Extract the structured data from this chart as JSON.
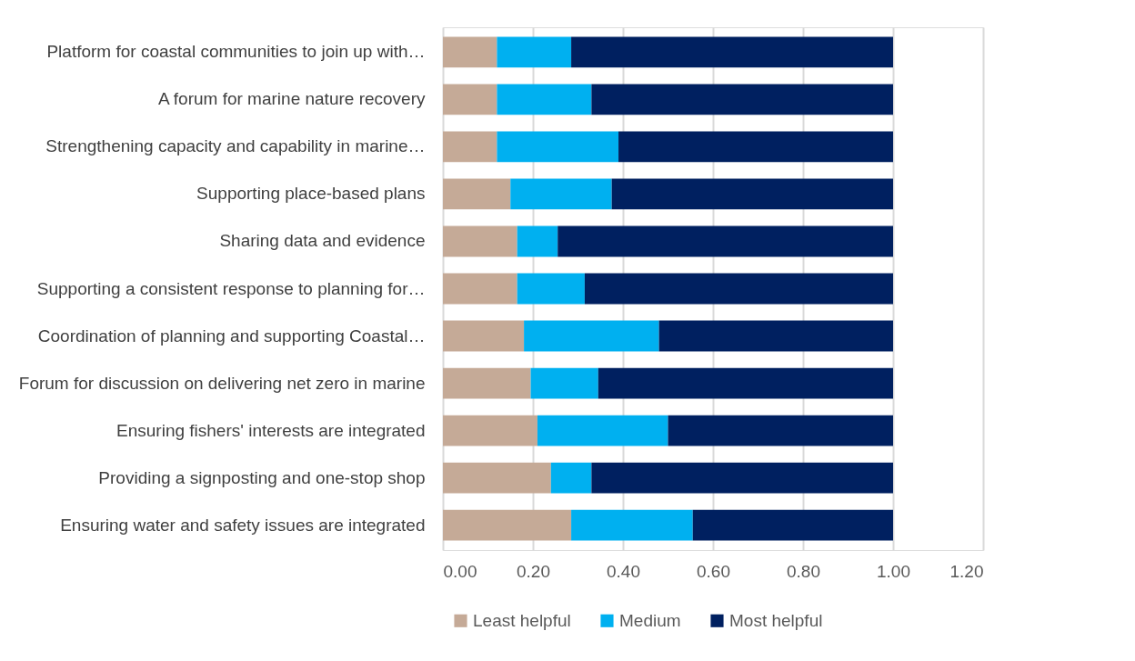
{
  "chart_data": {
    "type": "bar",
    "orientation": "horizontal",
    "stacked": true,
    "categories": [
      "Platform for coastal communities to join up with…",
      "A forum for marine nature recovery",
      "Strengthening capacity and capability in marine…",
      "Supporting place-based plans",
      "Sharing data and evidence",
      "Supporting a consistent response to planning for…",
      "Coordination of planning and supporting Coastal…",
      "Forum for discussion on delivering net zero in marine",
      "Ensuring fishers' interests are integrated",
      "Providing a signposting and one-stop shop",
      "Ensuring water and safety issues are integrated"
    ],
    "series": [
      {
        "name": "Least helpful",
        "color": "#c5aa97",
        "values": [
          0.12,
          0.12,
          0.12,
          0.15,
          0.165,
          0.165,
          0.18,
          0.195,
          0.21,
          0.24,
          0.285
        ]
      },
      {
        "name": "Medium",
        "color": "#00b0f0",
        "values": [
          0.165,
          0.21,
          0.27,
          0.225,
          0.09,
          0.15,
          0.3,
          0.15,
          0.29,
          0.09,
          0.27
        ]
      },
      {
        "name": "Most helpful",
        "color": "#002060",
        "values": [
          0.715,
          0.67,
          0.61,
          0.625,
          0.745,
          0.685,
          0.52,
          0.655,
          0.5,
          0.67,
          0.445
        ]
      }
    ],
    "xlim": [
      0,
      1.2
    ],
    "xticks": [
      {
        "value": 0,
        "label": "0.00"
      },
      {
        "value": 0.2,
        "label": "0.20"
      },
      {
        "value": 0.4,
        "label": "0.40"
      },
      {
        "value": 0.6,
        "label": "0.60"
      },
      {
        "value": 0.8,
        "label": "0.80"
      },
      {
        "value": 1.0,
        "label": "1.00"
      },
      {
        "value": 1.2,
        "label": "1.20"
      }
    ],
    "grid": "x",
    "legend": "bottom"
  }
}
